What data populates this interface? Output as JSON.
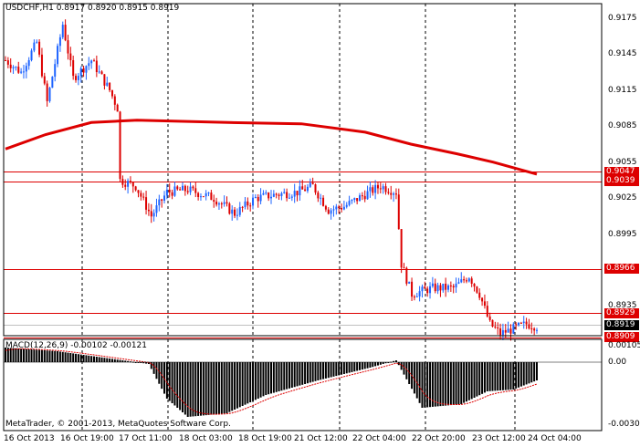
{
  "header": {
    "symbol": "USDCHF,H1",
    "ohlc": "0.8917 0.8920 0.8915 0.8919"
  },
  "price_axis": [
    "0.9175",
    "0.9145",
    "0.9115",
    "0.9085",
    "0.9055",
    "0.9025",
    "0.8995",
    "0.8935"
  ],
  "price_ticks": [
    0.9175,
    0.9145,
    0.9115,
    0.9085,
    0.9055,
    0.9025,
    0.8995,
    0.8935
  ],
  "level_tags": [
    {
      "value": "0.9047",
      "v": 0.9047,
      "bg": "#dd0000",
      "fg": "#ffffff"
    },
    {
      "value": "0.9039",
      "v": 0.9039,
      "bg": "#dd0000",
      "fg": "#ffffff"
    },
    {
      "value": "0.8966",
      "v": 0.8966,
      "bg": "#dd0000",
      "fg": "#ffffff"
    },
    {
      "value": "0.8929",
      "v": 0.8929,
      "bg": "#dd0000",
      "fg": "#ffffff"
    },
    {
      "value": "0.8919",
      "v": 0.8919,
      "bg": "#000000",
      "fg": "#ffffff"
    },
    {
      "value": "0.8909",
      "v": 0.8909,
      "bg": "#dd0000",
      "fg": "#ffffff"
    }
  ],
  "macd": {
    "label": "MACD(12,26,9) -0.00102 -0.00121",
    "axis": [
      "0.00105",
      "0.00",
      "-0.00303"
    ]
  },
  "time_axis": [
    "16 Oct 2013",
    "16 Oct 19:00",
    "17 Oct 11:00",
    "18 Oct 03:00",
    "18 Oct 19:00",
    "21 Oct 12:00",
    "22 Oct 04:00",
    "22 Oct 20:00",
    "23 Oct 12:00",
    "24 Oct 04:00"
  ],
  "copyright": "MetaTrader, © 2001-2013, MetaQuotes Software Corp.",
  "colors": {
    "bull": "#1e64ff",
    "bear": "#dd0000",
    "grid": "#000000",
    "ma": "#dd0000"
  }
}
